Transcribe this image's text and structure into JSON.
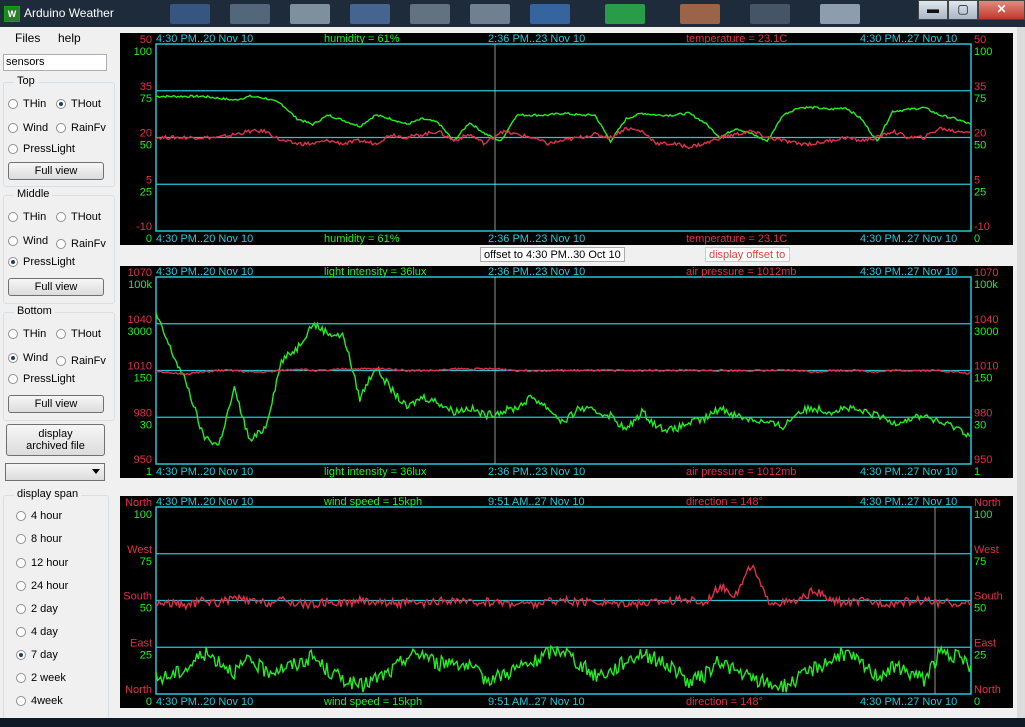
{
  "window": {
    "title": "Arduino Weather",
    "minimize": "▬",
    "maximize": "▢",
    "close": "✕"
  },
  "menu": {
    "files": "Files",
    "help": "help"
  },
  "sensors_field": "sensors",
  "top_group": {
    "title": "Top",
    "options": [
      "THin",
      "THout",
      "Wind",
      "RainFv",
      "PressLight"
    ],
    "selected": "THout",
    "full_view": "Full view"
  },
  "middle_group": {
    "title": "Middle",
    "options": [
      "THin",
      "THout",
      "Wind",
      "RainFv",
      "PressLight"
    ],
    "selected": "PressLight",
    "full_view": "Full view"
  },
  "bottom_group": {
    "title": "Bottom",
    "options": [
      "THin",
      "THout",
      "Wind",
      "RainFv",
      "PressLight"
    ],
    "selected": "Wind",
    "full_view": "Full view"
  },
  "archive_button": {
    "line1": "display",
    "line2": "archived file"
  },
  "span_group": {
    "title": "display span",
    "options": [
      "4 hour",
      "8 hour",
      "12 hour",
      "24 hour",
      "2 day",
      "4 day",
      "7 day",
      "2 week",
      "4week"
    ],
    "selected": "7 day"
  },
  "offset_bar": {
    "label": "offset to  4:30 PM..30 Oct 10",
    "display_offset": "display offset to"
  },
  "colors": {
    "cyan": "#22c8d8",
    "green": "#22ee22",
    "red": "#e0304a",
    "bg": "#000000"
  },
  "chart_data": [
    {
      "type": "line",
      "top_labels": [
        "4:30 PM..20 Nov 10",
        "humidity = 61%",
        "2:36 PM..23 Nov 10",
        "temperature = 23.1C",
        "4:30 PM..27 Nov 10"
      ],
      "bottom_labels": [
        "4:30 PM..20 Nov 10",
        "humidity = 61%",
        "2:36 PM..23 Nov 10",
        "temperature = 23.1C",
        "4:30 PM..27 Nov 10"
      ],
      "left_axis_red": [
        "50",
        "35",
        "20",
        "5",
        "-10"
      ],
      "left_axis_green": [
        "100",
        "75",
        "50",
        "25",
        "0"
      ],
      "right_axis_red": [
        "50",
        "35",
        "20",
        "5",
        "-10"
      ],
      "right_axis_green": [
        "100",
        "75",
        "50",
        "25",
        "0"
      ],
      "series": [
        {
          "name": "humidity",
          "color": "#22ee22",
          "values": [
            72,
            72,
            72,
            72,
            71,
            70,
            72,
            71,
            68,
            60,
            57,
            62,
            59,
            56,
            62,
            60,
            57,
            60,
            58,
            48,
            58,
            52,
            48,
            62,
            62,
            62,
            63,
            62,
            62,
            48,
            60,
            63,
            62,
            62,
            63,
            58,
            50,
            55,
            52,
            48,
            62,
            66,
            66,
            65,
            66,
            60,
            48,
            64,
            65,
            66,
            62,
            60,
            57
          ]
        },
        {
          "name": "temperature",
          "color": "#e0304a",
          "units": "C",
          "values": [
            20,
            20,
            20,
            20,
            20,
            21,
            22,
            22,
            19,
            18,
            18,
            19,
            18,
            19,
            18,
            21,
            20,
            21,
            22,
            19,
            21,
            18,
            22,
            21,
            20,
            18,
            19,
            20,
            21,
            20,
            23,
            22,
            18,
            18,
            17,
            18,
            20,
            21,
            22,
            20,
            19,
            18,
            18,
            19,
            20,
            19,
            20,
            22,
            20,
            20,
            23,
            22,
            22
          ]
        }
      ],
      "ylim_green": [
        0,
        100
      ],
      "ylim_red": [
        -10,
        50
      ]
    },
    {
      "type": "line",
      "top_labels": [
        "4:30 PM..20 Nov 10",
        "light intensity = 36lux",
        "2:36 PM..23 Nov 10",
        "air pressure = 1012mb",
        "4:30 PM..27 Nov 10"
      ],
      "bottom_labels": [
        "4:30 PM..20 Nov 10",
        "light intensity = 36lux",
        "2:36 PM..23 Nov 10",
        "air pressure = 1012mb",
        "4:30 PM..27 Nov 10"
      ],
      "left_axis_red": [
        "1070",
        "1040",
        "1010",
        "980",
        "950"
      ],
      "left_axis_green": [
        "100k",
        "3000",
        "150",
        "30",
        "1"
      ],
      "right_axis_red": [
        "1070",
        "1040",
        "1010",
        "980",
        "950"
      ],
      "right_axis_green": [
        "100k",
        "3000",
        "150",
        "30",
        "1"
      ],
      "series": [
        {
          "name": "light intensity",
          "color": "#22ee22",
          "values": [
            80,
            60,
            42,
            15,
            10,
            40,
            12,
            20,
            55,
            62,
            75,
            70,
            68,
            35,
            52,
            40,
            30,
            36,
            33,
            28,
            30,
            26,
            28,
            30,
            36,
            30,
            22,
            30,
            28,
            26,
            18,
            28,
            20,
            18,
            22,
            24,
            30,
            26,
            24,
            22,
            20,
            28,
            30,
            28,
            30,
            28,
            26,
            22,
            24,
            26,
            22,
            20,
            15
          ]
        },
        {
          "name": "air pressure",
          "color": "#e0304a",
          "units": "mb",
          "values": [
            1010,
            1008,
            1008,
            1009,
            1010,
            1010,
            1009,
            1009,
            1010,
            1011,
            1010,
            1010,
            1011,
            1011,
            1011,
            1011,
            1010,
            1010,
            1010,
            1011,
            1011,
            1011,
            1011,
            1010,
            1010,
            1010,
            1010,
            1010,
            1010,
            1010,
            1010,
            1010,
            1010,
            1010,
            1010,
            1010,
            1010,
            1010,
            1010,
            1010,
            1010,
            1010,
            1009,
            1010,
            1010,
            1010,
            1009,
            1010,
            1010,
            1010,
            1010,
            1009,
            1008
          ]
        }
      ]
    },
    {
      "type": "line",
      "top_labels": [
        "4:30 PM..20 Nov 10",
        "wind speed = 15kph",
        "9:51 AM..27 Nov 10",
        "direction = 148°",
        "4:30 PM..27 Nov 10"
      ],
      "bottom_labels": [
        "4:30 PM..20 Nov 10",
        "wind speed = 15kph",
        "9:51 AM..27 Nov 10",
        "direction = 148°",
        "4:30 PM..27 Nov 10"
      ],
      "left_axis_red": [
        "North",
        "West",
        "South",
        "East",
        "North"
      ],
      "left_axis_green": [
        "100",
        "75",
        "50",
        "25",
        "0"
      ],
      "right_axis_red": [
        "North",
        "West",
        "South",
        "East",
        "North"
      ],
      "right_axis_green": [
        "100",
        "75",
        "50",
        "25",
        "0"
      ],
      "series": [
        {
          "name": "wind speed",
          "color": "#22ee22",
          "units": "kph",
          "values": [
            8,
            10,
            14,
            22,
            18,
            12,
            18,
            12,
            14,
            16,
            20,
            12,
            8,
            4,
            8,
            12,
            20,
            22,
            16,
            18,
            14,
            8,
            10,
            14,
            16,
            22,
            24,
            16,
            10,
            12,
            18,
            22,
            18,
            14,
            6,
            10,
            18,
            12,
            8,
            6,
            4,
            8,
            14,
            18,
            22,
            16,
            10,
            14,
            12,
            8,
            22,
            20,
            15
          ]
        },
        {
          "name": "direction",
          "color": "#e0304a",
          "values": [
            175,
            175,
            170,
            180,
            175,
            185,
            178,
            175,
            180,
            175,
            172,
            178,
            175,
            180,
            178,
            176,
            175,
            172,
            178,
            180,
            175,
            178,
            176,
            175,
            172,
            178,
            180,
            175,
            178,
            175,
            176,
            174,
            178,
            180,
            182,
            175,
            210,
            190,
            250,
            180,
            175,
            178,
            200,
            180,
            175,
            178,
            176,
            175,
            178,
            180,
            176,
            175,
            172
          ]
        }
      ]
    }
  ]
}
